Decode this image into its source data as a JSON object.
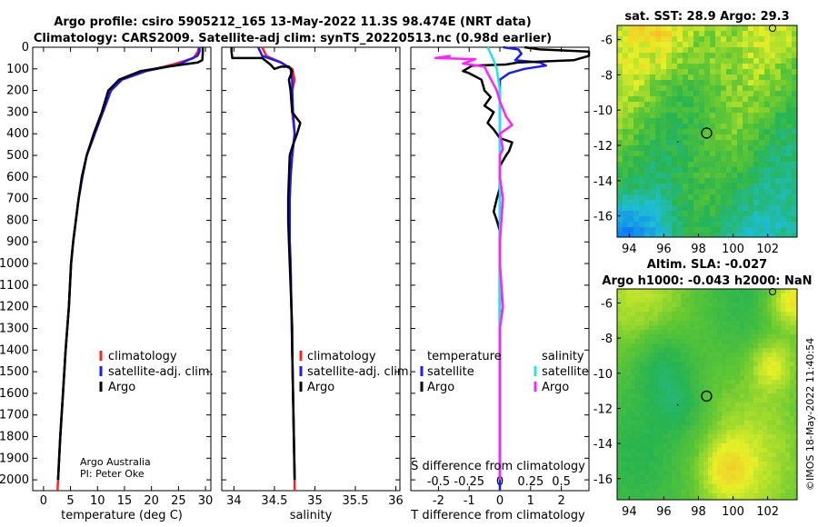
{
  "title_line1": "Argo profile: csiro 5905212_165 13-May-2022 11.3S 98.474E (NRT data)",
  "title_line2": "Climatology: CARS2009. Satellite-adj clim: synTS_20220513.nc (0.98d earlier)",
  "colors": {
    "climatology": "#ff2020",
    "satellite": "#1a1aff",
    "argo": "#000000",
    "sal_satellite": "#22e6e6",
    "sal_argo": "#ff22ff"
  },
  "chart_data": [
    {
      "type": "line",
      "id": "temperature",
      "xlabel": "temperature (deg C)",
      "xlim": [
        -2,
        31
      ],
      "xticks": [
        0,
        5,
        10,
        15,
        20,
        25,
        30
      ],
      "ylim": [
        2050,
        0
      ],
      "yticks": [
        0,
        100,
        200,
        300,
        400,
        500,
        600,
        700,
        800,
        900,
        1000,
        1100,
        1200,
        1300,
        1400,
        1500,
        1600,
        1700,
        1800,
        1900,
        2000
      ],
      "legend": [
        "climatology",
        "satellite-adj. clim.",
        "Argo"
      ],
      "credit": [
        "Argo Australia",
        "PI: Peter Oke"
      ],
      "series": [
        {
          "name": "climatology",
          "color": "#ff2020",
          "points": [
            [
              28.8,
              0
            ],
            [
              28.6,
              20
            ],
            [
              27.8,
              50
            ],
            [
              24,
              80
            ],
            [
              19,
              110
            ],
            [
              14.5,
              150
            ],
            [
              12.5,
              200
            ],
            [
              11,
              300
            ],
            [
              9.5,
              400
            ],
            [
              8,
              500
            ],
            [
              7.2,
              600
            ],
            [
              6.5,
              700
            ],
            [
              6,
              800
            ],
            [
              5.5,
              900
            ],
            [
              5.1,
              1000
            ],
            [
              4.7,
              1200
            ],
            [
              4.1,
              1400
            ],
            [
              3.6,
              1600
            ],
            [
              3.1,
              1800
            ],
            [
              2.7,
              2000
            ],
            [
              2.6,
              2050
            ]
          ]
        },
        {
          "name": "satellite-adj. clim.",
          "color": "#1a1aff",
          "points": [
            [
              28.9,
              0
            ],
            [
              28.9,
              20
            ],
            [
              28.5,
              40
            ],
            [
              25,
              80
            ],
            [
              19,
              110
            ],
            [
              14.5,
              150
            ],
            [
              12.5,
              200
            ],
            [
              11,
              300
            ],
            [
              9.5,
              400
            ],
            [
              8,
              500
            ],
            [
              7.2,
              600
            ],
            [
              6.5,
              700
            ],
            [
              6,
              800
            ],
            [
              5.5,
              900
            ],
            [
              5.1,
              1000
            ],
            [
              4.7,
              1200
            ],
            [
              4.1,
              1400
            ],
            [
              3.6,
              1600
            ],
            [
              3.1,
              1800
            ],
            [
              2.7,
              2000
            ]
          ]
        },
        {
          "name": "Argo",
          "color": "#000000",
          "points": [
            [
              29.5,
              0
            ],
            [
              29.5,
              30
            ],
            [
              29.4,
              60
            ],
            [
              28.6,
              70
            ],
            [
              23,
              90
            ],
            [
              18,
              110
            ],
            [
              14,
              150
            ],
            [
              12,
              200
            ],
            [
              10.8,
              300
            ],
            [
              9.3,
              400
            ],
            [
              8,
              500
            ],
            [
              7.1,
              600
            ],
            [
              6.5,
              700
            ],
            [
              6,
              800
            ],
            [
              5.5,
              900
            ],
            [
              5.1,
              1000
            ],
            [
              4.7,
              1200
            ],
            [
              4.1,
              1400
            ],
            [
              3.6,
              1600
            ],
            [
              3.1,
              1800
            ],
            [
              2.7,
              2000
            ]
          ]
        }
      ]
    },
    {
      "type": "line",
      "id": "salinity",
      "xlabel": "salinity",
      "xlim": [
        33.85,
        36.05
      ],
      "xticks": [
        34,
        34.5,
        35,
        35.5,
        36
      ],
      "ylim": [
        2050,
        0
      ],
      "legend": [
        "climatology",
        "satellite-adj. clim.",
        "Argo"
      ],
      "series": [
        {
          "name": "climatology",
          "color": "#ff2020",
          "points": [
            [
              34.35,
              0
            ],
            [
              34.4,
              40
            ],
            [
              34.58,
              70
            ],
            [
              34.72,
              100
            ],
            [
              34.75,
              150
            ],
            [
              34.72,
              200
            ],
            [
              34.72,
              300
            ],
            [
              34.75,
              400
            ],
            [
              34.72,
              500
            ],
            [
              34.7,
              600
            ],
            [
              34.69,
              700
            ],
            [
              34.69,
              800
            ],
            [
              34.69,
              900
            ],
            [
              34.7,
              1000
            ],
            [
              34.71,
              1200
            ],
            [
              34.72,
              1400
            ],
            [
              34.73,
              1600
            ],
            [
              34.74,
              1800
            ],
            [
              34.75,
              2000
            ],
            [
              34.75,
              2050
            ]
          ]
        },
        {
          "name": "satellite-adj. clim.",
          "color": "#1a1aff",
          "points": [
            [
              34.3,
              0
            ],
            [
              34.35,
              40
            ],
            [
              34.58,
              70
            ],
            [
              34.7,
              100
            ],
            [
              34.72,
              150
            ],
            [
              34.72,
              200
            ],
            [
              34.73,
              300
            ],
            [
              34.75,
              400
            ],
            [
              34.72,
              500
            ],
            [
              34.7,
              600
            ],
            [
              34.69,
              700
            ],
            [
              34.69,
              800
            ],
            [
              34.69,
              900
            ],
            [
              34.7,
              1000
            ],
            [
              34.71,
              1200
            ],
            [
              34.72,
              1400
            ],
            [
              34.73,
              1600
            ],
            [
              34.74,
              1800
            ],
            [
              34.75,
              2000
            ]
          ]
        },
        {
          "name": "Argo",
          "color": "#000000",
          "points": [
            [
              33.97,
              0
            ],
            [
              33.97,
              20
            ],
            [
              33.98,
              50
            ],
            [
              34.35,
              50
            ],
            [
              34.45,
              80
            ],
            [
              34.5,
              100
            ],
            [
              34.58,
              90
            ],
            [
              34.68,
              90
            ],
            [
              34.72,
              110
            ],
            [
              34.68,
              150
            ],
            [
              34.7,
              200
            ],
            [
              34.72,
              300
            ],
            [
              34.82,
              350
            ],
            [
              34.78,
              400
            ],
            [
              34.73,
              450
            ],
            [
              34.69,
              500
            ],
            [
              34.68,
              600
            ],
            [
              34.67,
              700
            ],
            [
              34.67,
              800
            ],
            [
              34.68,
              900
            ],
            [
              34.69,
              1000
            ],
            [
              34.7,
              1100
            ],
            [
              34.71,
              1200
            ],
            [
              34.72,
              1300
            ],
            [
              34.72,
              1400
            ],
            [
              34.73,
              1600
            ],
            [
              34.74,
              1800
            ],
            [
              34.75,
              2000
            ]
          ]
        }
      ]
    },
    {
      "type": "line",
      "id": "difference",
      "xlabel": "T difference from climatology",
      "xlabel_top": "S difference from climatology",
      "xlim": [
        -2.9,
        2.9
      ],
      "xticks": [
        -2,
        -1,
        0,
        1,
        2
      ],
      "xticks_top": [
        "-0.5",
        "-0.25",
        "0",
        "0.25",
        "0.5"
      ],
      "xticks_top_values": [
        -2,
        -1,
        0,
        1,
        2
      ],
      "ylim": [
        2050,
        0
      ],
      "legend_left": {
        "heading": "temperature",
        "items": [
          "satellite",
          "Argo"
        ]
      },
      "legend_right": {
        "heading": "salinity",
        "items": [
          "satellite",
          "Argo"
        ]
      },
      "series": [
        {
          "name": "temperature satellite",
          "color": "#1a1aff",
          "points": [
            [
              0.1,
              0
            ],
            [
              0.6,
              10
            ],
            [
              0.7,
              30
            ],
            [
              0.5,
              60
            ],
            [
              1.3,
              70
            ],
            [
              1.5,
              85
            ],
            [
              0.8,
              100
            ],
            [
              0.3,
              120
            ],
            [
              0,
              150
            ],
            [
              0,
              300
            ],
            [
              0,
              2000
            ],
            [
              0,
              2050
            ]
          ]
        },
        {
          "name": "temperature Argo",
          "color": "#000000",
          "points": [
            [
              0.8,
              0
            ],
            [
              1.3,
              10
            ],
            [
              2.9,
              20
            ],
            [
              2.9,
              40
            ],
            [
              2.4,
              60
            ],
            [
              0.6,
              70
            ],
            [
              0.2,
              80
            ],
            [
              -0.9,
              85
            ],
            [
              -1.2,
              110
            ],
            [
              -1.0,
              120
            ],
            [
              -0.6,
              150
            ],
            [
              -0.5,
              200
            ],
            [
              -0.3,
              230
            ],
            [
              -0.5,
              270
            ],
            [
              -0.2,
              300
            ],
            [
              -0.4,
              350
            ],
            [
              -0.2,
              380
            ],
            [
              0,
              420
            ],
            [
              0.4,
              440
            ],
            [
              0.3,
              480
            ],
            [
              0.2,
              500
            ],
            [
              0,
              550
            ],
            [
              0,
              650
            ],
            [
              -0.1,
              700
            ],
            [
              -0.2,
              760
            ],
            [
              -0.1,
              800
            ],
            [
              0,
              850
            ],
            [
              0,
              2000
            ]
          ]
        },
        {
          "name": "salinity satellite",
          "color": "#22e6e6",
          "points": [
            [
              -0.4,
              0
            ],
            [
              -0.3,
              30
            ],
            [
              -0.2,
              60
            ],
            [
              -0.1,
              100
            ],
            [
              0,
              200
            ],
            [
              0,
              1000
            ],
            [
              0,
              1500
            ],
            [
              0,
              2000
            ]
          ]
        },
        {
          "name": "salinity Argo",
          "color": "#ff22ff",
          "points": [
            [
              -1.6,
              40
            ],
            [
              -2.1,
              50
            ],
            [
              -0.8,
              55
            ],
            [
              -1.2,
              75
            ],
            [
              -0.5,
              90
            ],
            [
              -0.4,
              120
            ],
            [
              -0.1,
              200
            ],
            [
              0,
              250
            ],
            [
              0.2,
              320
            ],
            [
              0.4,
              360
            ],
            [
              0,
              400
            ],
            [
              0.1,
              470
            ],
            [
              0,
              500
            ],
            [
              0,
              600
            ],
            [
              0.1,
              700
            ],
            [
              0,
              900
            ],
            [
              0,
              1000
            ],
            [
              0.1,
              1200
            ],
            [
              0,
              1300
            ],
            [
              0,
              2000
            ]
          ]
        }
      ]
    },
    {
      "type": "heatmap",
      "id": "sst",
      "title": "sat. SST: 28.9 Argo: 29.3",
      "xlim": [
        93.3,
        103.7
      ],
      "ylim": [
        -17.2,
        -5.2
      ],
      "xticks": [
        94,
        96,
        98,
        100,
        102
      ],
      "yticks": [
        -6,
        -8,
        -10,
        -12,
        -14,
        -16
      ],
      "marker": [
        98.47,
        -11.3
      ]
    },
    {
      "type": "heatmap",
      "id": "sla",
      "title_line1": "Altim. SLA: -0.027",
      "title_line2": "Argo h1000: -0.043 h2000: NaN",
      "xlim": [
        93.3,
        103.7
      ],
      "ylim": [
        -17.2,
        -5.2
      ],
      "xticks": [
        94,
        96,
        98,
        100,
        102
      ],
      "yticks": [
        -6,
        -8,
        -10,
        -12,
        -14,
        -16
      ],
      "marker": [
        98.47,
        -11.3
      ]
    }
  ],
  "credit_right": "©IMOS 18-May-2022 11:40:54"
}
